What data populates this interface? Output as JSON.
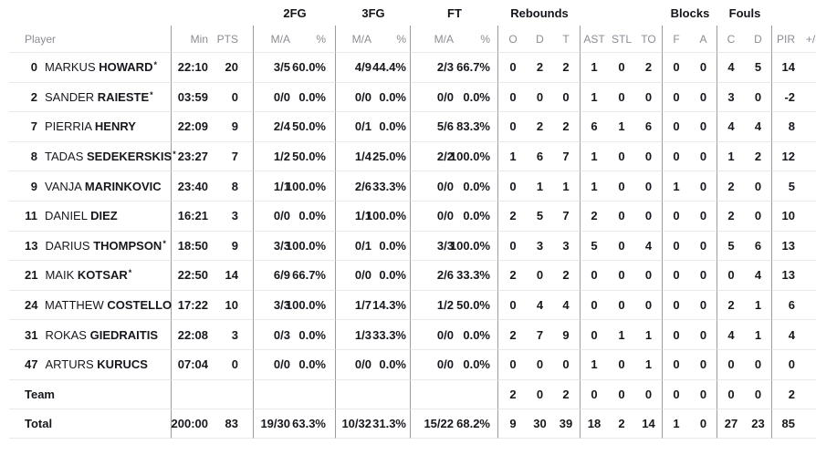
{
  "table": {
    "group_headers": {
      "fg2": "2FG",
      "fg3": "3FG",
      "ft": "FT",
      "rebounds": "Rebounds",
      "blocks": "Blocks",
      "fouls": "Fouls"
    },
    "columns": [
      "Player",
      "Min",
      "PTS",
      "M/A",
      "%",
      "M/A",
      "%",
      "M/A",
      "%",
      "O",
      "D",
      "T",
      "AST",
      "STL",
      "TO",
      "F",
      "A",
      "C",
      "D",
      "PIR",
      "+/-"
    ],
    "rows": [
      {
        "no": "0",
        "first": "MARKUS",
        "last": "HOWARD",
        "star": "*",
        "min": "22:10",
        "pts": "20",
        "fg2_ma": "3/5",
        "fg2_pct": "60.0%",
        "fg3_ma": "4/9",
        "fg3_pct": "44.4%",
        "ft_ma": "2/3",
        "ft_pct": "66.7%",
        "reb_o": "0",
        "reb_d": "2",
        "reb_t": "2",
        "ast": "1",
        "stl": "0",
        "to": "2",
        "blk_f": "0",
        "blk_a": "0",
        "foul_c": "4",
        "foul_d": "5",
        "pir": "14",
        "pm": ""
      },
      {
        "no": "2",
        "first": "SANDER",
        "last": "RAIESTE",
        "star": "*",
        "min": "03:59",
        "pts": "0",
        "fg2_ma": "0/0",
        "fg2_pct": "0.0%",
        "fg3_ma": "0/0",
        "fg3_pct": "0.0%",
        "ft_ma": "0/0",
        "ft_pct": "0.0%",
        "reb_o": "0",
        "reb_d": "0",
        "reb_t": "0",
        "ast": "1",
        "stl": "0",
        "to": "0",
        "blk_f": "0",
        "blk_a": "0",
        "foul_c": "3",
        "foul_d": "0",
        "pir": "-2",
        "pm": ""
      },
      {
        "no": "7",
        "first": "PIERRIA",
        "last": "HENRY",
        "star": "",
        "min": "22:09",
        "pts": "9",
        "fg2_ma": "2/4",
        "fg2_pct": "50.0%",
        "fg3_ma": "0/1",
        "fg3_pct": "0.0%",
        "ft_ma": "5/6",
        "ft_pct": "83.3%",
        "reb_o": "0",
        "reb_d": "2",
        "reb_t": "2",
        "ast": "6",
        "stl": "1",
        "to": "6",
        "blk_f": "0",
        "blk_a": "0",
        "foul_c": "4",
        "foul_d": "4",
        "pir": "8",
        "pm": ""
      },
      {
        "no": "8",
        "first": "TADAS",
        "last": "SEDEKERSKIS",
        "star": "*",
        "min": "23:27",
        "pts": "7",
        "fg2_ma": "1/2",
        "fg2_pct": "50.0%",
        "fg3_ma": "1/4",
        "fg3_pct": "25.0%",
        "ft_ma": "2/2",
        "ft_pct": "100.0%",
        "reb_o": "1",
        "reb_d": "6",
        "reb_t": "7",
        "ast": "1",
        "stl": "0",
        "to": "0",
        "blk_f": "0",
        "blk_a": "0",
        "foul_c": "1",
        "foul_d": "2",
        "pir": "12",
        "pm": ""
      },
      {
        "no": "9",
        "first": "VANJA",
        "last": "MARINKOVIC",
        "star": "",
        "min": "23:40",
        "pts": "8",
        "fg2_ma": "1/1",
        "fg2_pct": "100.0%",
        "fg3_ma": "2/6",
        "fg3_pct": "33.3%",
        "ft_ma": "0/0",
        "ft_pct": "0.0%",
        "reb_o": "0",
        "reb_d": "1",
        "reb_t": "1",
        "ast": "1",
        "stl": "0",
        "to": "0",
        "blk_f": "1",
        "blk_a": "0",
        "foul_c": "2",
        "foul_d": "0",
        "pir": "5",
        "pm": ""
      },
      {
        "no": "11",
        "first": "DANIEL",
        "last": "DIEZ",
        "star": "",
        "min": "16:21",
        "pts": "3",
        "fg2_ma": "0/0",
        "fg2_pct": "0.0%",
        "fg3_ma": "1/1",
        "fg3_pct": "100.0%",
        "ft_ma": "0/0",
        "ft_pct": "0.0%",
        "reb_o": "2",
        "reb_d": "5",
        "reb_t": "7",
        "ast": "2",
        "stl": "0",
        "to": "0",
        "blk_f": "0",
        "blk_a": "0",
        "foul_c": "2",
        "foul_d": "0",
        "pir": "10",
        "pm": ""
      },
      {
        "no": "13",
        "first": "DARIUS",
        "last": "THOMPSON",
        "star": "*",
        "min": "18:50",
        "pts": "9",
        "fg2_ma": "3/3",
        "fg2_pct": "100.0%",
        "fg3_ma": "0/1",
        "fg3_pct": "0.0%",
        "ft_ma": "3/3",
        "ft_pct": "100.0%",
        "reb_o": "0",
        "reb_d": "3",
        "reb_t": "3",
        "ast": "5",
        "stl": "0",
        "to": "4",
        "blk_f": "0",
        "blk_a": "0",
        "foul_c": "5",
        "foul_d": "6",
        "pir": "13",
        "pm": ""
      },
      {
        "no": "21",
        "first": "MAIK",
        "last": "KOTSAR",
        "star": "*",
        "min": "22:50",
        "pts": "14",
        "fg2_ma": "6/9",
        "fg2_pct": "66.7%",
        "fg3_ma": "0/0",
        "fg3_pct": "0.0%",
        "ft_ma": "2/6",
        "ft_pct": "33.3%",
        "reb_o": "2",
        "reb_d": "0",
        "reb_t": "2",
        "ast": "0",
        "stl": "0",
        "to": "0",
        "blk_f": "0",
        "blk_a": "0",
        "foul_c": "0",
        "foul_d": "4",
        "pir": "13",
        "pm": ""
      },
      {
        "no": "24",
        "first": "MATTHEW",
        "last": "COSTELLO",
        "star": "",
        "min": "17:22",
        "pts": "10",
        "fg2_ma": "3/3",
        "fg2_pct": "100.0%",
        "fg3_ma": "1/7",
        "fg3_pct": "14.3%",
        "ft_ma": "1/2",
        "ft_pct": "50.0%",
        "reb_o": "0",
        "reb_d": "4",
        "reb_t": "4",
        "ast": "0",
        "stl": "0",
        "to": "0",
        "blk_f": "0",
        "blk_a": "0",
        "foul_c": "2",
        "foul_d": "1",
        "pir": "6",
        "pm": ""
      },
      {
        "no": "31",
        "first": "ROKAS",
        "last": "GIEDRAITIS",
        "star": "",
        "min": "22:08",
        "pts": "3",
        "fg2_ma": "0/3",
        "fg2_pct": "0.0%",
        "fg3_ma": "1/3",
        "fg3_pct": "33.3%",
        "ft_ma": "0/0",
        "ft_pct": "0.0%",
        "reb_o": "2",
        "reb_d": "7",
        "reb_t": "9",
        "ast": "0",
        "stl": "1",
        "to": "1",
        "blk_f": "0",
        "blk_a": "0",
        "foul_c": "4",
        "foul_d": "1",
        "pir": "4",
        "pm": ""
      },
      {
        "no": "47",
        "first": "ARTURS",
        "last": "KURUCS",
        "star": "",
        "min": "07:04",
        "pts": "0",
        "fg2_ma": "0/0",
        "fg2_pct": "0.0%",
        "fg3_ma": "0/0",
        "fg3_pct": "0.0%",
        "ft_ma": "0/0",
        "ft_pct": "0.0%",
        "reb_o": "0",
        "reb_d": "0",
        "reb_t": "0",
        "ast": "1",
        "stl": "0",
        "to": "1",
        "blk_f": "0",
        "blk_a": "0",
        "foul_c": "0",
        "foul_d": "0",
        "pir": "0",
        "pm": ""
      },
      {
        "label": "Team",
        "min": "",
        "pts": "",
        "fg2_ma": "",
        "fg2_pct": "",
        "fg3_ma": "",
        "fg3_pct": "",
        "ft_ma": "",
        "ft_pct": "",
        "reb_o": "2",
        "reb_d": "0",
        "reb_t": "2",
        "ast": "0",
        "stl": "0",
        "to": "0",
        "blk_f": "0",
        "blk_a": "0",
        "foul_c": "0",
        "foul_d": "0",
        "pir": "2",
        "pm": ""
      },
      {
        "label": "Total",
        "min": "200:00",
        "pts": "83",
        "fg2_ma": "19/30",
        "fg2_pct": "63.3%",
        "fg3_ma": "10/32",
        "fg3_pct": "31.3%",
        "ft_ma": "15/22",
        "ft_pct": "68.2%",
        "reb_o": "9",
        "reb_d": "30",
        "reb_t": "39",
        "ast": "18",
        "stl": "2",
        "to": "14",
        "blk_f": "1",
        "blk_a": "0",
        "foul_c": "27",
        "foul_d": "23",
        "pir": "85",
        "pm": ""
      }
    ]
  }
}
